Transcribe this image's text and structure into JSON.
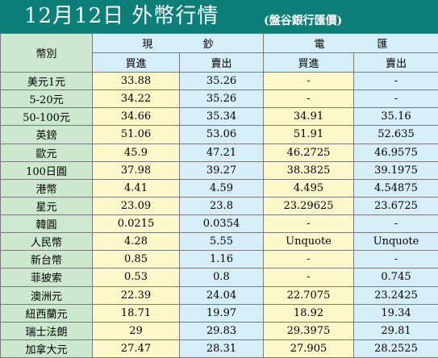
{
  "header": {
    "title": "12月12日 外幣行情",
    "subtitle": "(盤谷銀行匯價)"
  },
  "table": {
    "corner_label": "幣別",
    "group_cash": [
      "現",
      "鈔"
    ],
    "group_wire": [
      "電",
      "匯"
    ],
    "buy_label": "買進",
    "sell_label": "賣出",
    "rows": [
      {
        "name": "美元1元",
        "cash_buy": "33.88",
        "cash_sell": "35.26",
        "wire_buy": "-",
        "wire_sell": "-"
      },
      {
        "name": "5-20元",
        "cash_buy": "34.22",
        "cash_sell": "35.26",
        "wire_buy": "-",
        "wire_sell": "-"
      },
      {
        "name": "50-100元",
        "cash_buy": "34.66",
        "cash_sell": "35.34",
        "wire_buy": "34.91",
        "wire_sell": "35.16"
      },
      {
        "name": "英鎊",
        "cash_buy": "51.06",
        "cash_sell": "53.06",
        "wire_buy": "51.91",
        "wire_sell": "52.635"
      },
      {
        "name": "歐元",
        "cash_buy": "45.9",
        "cash_sell": "47.21",
        "wire_buy": "46.2725",
        "wire_sell": "46.9575"
      },
      {
        "name": "100日圓",
        "cash_buy": "37.98",
        "cash_sell": "39.27",
        "wire_buy": "38.3825",
        "wire_sell": "39.1975"
      },
      {
        "name": "港幣",
        "cash_buy": "4.41",
        "cash_sell": "4.59",
        "wire_buy": "4.495",
        "wire_sell": "4.54875"
      },
      {
        "name": "星元",
        "cash_buy": "23.09",
        "cash_sell": "23.8",
        "wire_buy": "23.29625",
        "wire_sell": "23.6725"
      },
      {
        "name": "韓圓",
        "cash_buy": "0.0215",
        "cash_sell": "0.0354",
        "wire_buy": "-",
        "wire_sell": "-"
      },
      {
        "name": "人民幣",
        "cash_buy": "4.28",
        "cash_sell": "5.55",
        "wire_buy": "Unquote",
        "wire_sell": "Unquote"
      },
      {
        "name": "新台幣",
        "cash_buy": "0.85",
        "cash_sell": "1.16",
        "wire_buy": "-",
        "wire_sell": "-"
      },
      {
        "name": "菲披索",
        "cash_buy": "0.53",
        "cash_sell": "0.8",
        "wire_buy": "-",
        "wire_sell": "0.745"
      },
      {
        "name": "澳洲元",
        "cash_buy": "22.39",
        "cash_sell": "24.04",
        "wire_buy": "22.7075",
        "wire_sell": "23.2425"
      },
      {
        "name": "紐西蘭元",
        "cash_buy": "18.71",
        "cash_sell": "19.97",
        "wire_buy": "18.92",
        "wire_sell": "19.34"
      },
      {
        "name": "瑞士法朗",
        "cash_buy": "29",
        "cash_sell": "29.83",
        "wire_buy": "29.3975",
        "wire_sell": "29.81"
      },
      {
        "name": "加拿大元",
        "cash_buy": "27.47",
        "cash_sell": "28.31",
        "wire_buy": "27.905",
        "wire_sell": "28.2525"
      }
    ]
  }
}
